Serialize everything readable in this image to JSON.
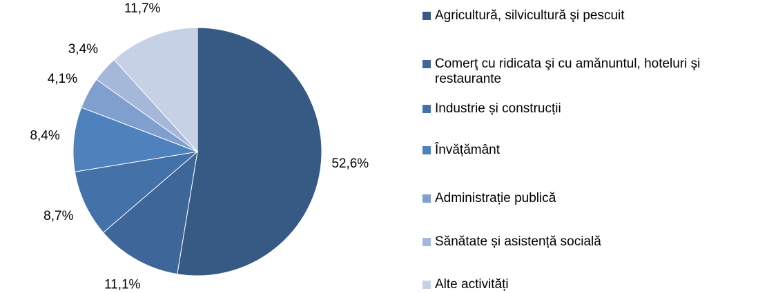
{
  "chart_data": {
    "type": "pie",
    "categories": [
      "Agricultură, silvicultură şi pescuit",
      "Comerţ cu ridicata şi cu amănuntul, hoteluri şi restaurante",
      "Industrie și construcții",
      "Învățământ",
      "Administrație publică",
      "Sănătate și asistență socială",
      "Alte activități"
    ],
    "values": [
      52.6,
      11.1,
      8.7,
      8.4,
      4.1,
      3.4,
      11.7
    ],
    "value_labels": [
      "52,6%",
      "11,1%",
      "8,7%",
      "8,4%",
      "4,1%",
      "3,4%",
      "11,7%"
    ],
    "colors": [
      "#375a84",
      "#3e6698",
      "#4471a8",
      "#4f81bd",
      "#7f9fcf",
      "#a5b8da",
      "#c6d1e5"
    ],
    "legend": "right"
  }
}
